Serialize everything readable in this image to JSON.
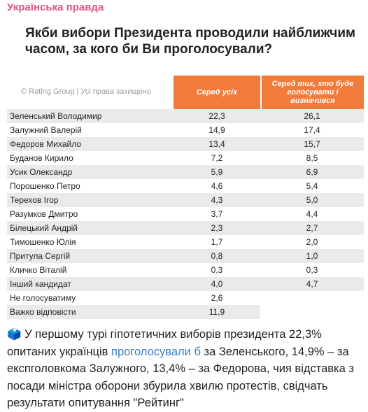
{
  "channel": "Українська правда",
  "card": {
    "title": "Якби вибори Президента проводили найближчим часом, за кого би Ви проголосували?",
    "credit": "© Rating Group | Усі права захищено",
    "table": {
      "headers": [
        "Серед усіх",
        "Серед тих, хто буде голосувати і визначився"
      ],
      "rows": [
        [
          "Зеленський Володимир",
          "22,3",
          "26,1"
        ],
        [
          "Залужний Валерій",
          "14,9",
          "17,4"
        ],
        [
          "Федоров Михайло",
          "13,4",
          "15,7"
        ],
        [
          "Буданов Кирило",
          "7,2",
          "8,5"
        ],
        [
          "Усик Олександр",
          "5,9",
          "6,9"
        ],
        [
          "Порошенко Петро",
          "4,6",
          "5,4"
        ],
        [
          "Терехов Ігор",
          "4,3",
          "5,0"
        ],
        [
          "Разумков Дмитро",
          "3,7",
          "4,4"
        ],
        [
          "Білецький Андрій",
          "2,3",
          "2,7"
        ],
        [
          "Тимошенко Юлія",
          "1,7",
          "2,0"
        ],
        [
          "Притула Сергій",
          "0,8",
          "1,0"
        ],
        [
          "Кличко Віталій",
          "0,3",
          "0,3"
        ],
        [
          "Інший кандидат",
          "4,0",
          "4,7"
        ],
        [
          "Не голосуватиму",
          "2,6"
        ],
        [
          "Важко відповісти",
          "11,9"
        ]
      ]
    }
  },
  "post": {
    "icon": "🗳️",
    "text_before": "У першому турі гіпотетичних виборів президента 22,3% опитаних українців ",
    "link": "проголосували б",
    "text_after": " за Зеленського, 14,9% – за експголовкома Залужного, 13,4% – за Федорова, чия відставка з посади міністра оборони збурила хвилю протестів, свідчать результати опитування \"Рейтинг\""
  }
}
